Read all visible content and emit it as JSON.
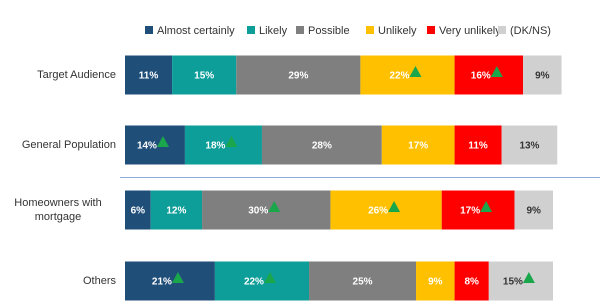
{
  "chart_data": {
    "type": "stacked-bar-horizontal",
    "categories": [
      "Target Audience",
      "General Population",
      "Homeowners with mortgage",
      "Others"
    ],
    "series": [
      {
        "name": "Almost certainly",
        "color": "#1f4e79",
        "label_color": "#ffffff",
        "values": [
          11,
          14,
          6,
          21
        ],
        "value_labels": [
          "11%",
          "14%",
          "6%",
          "21%"
        ],
        "up_markers": [
          false,
          true,
          false,
          true
        ]
      },
      {
        "name": "Likely",
        "color": "#0e9e9a",
        "label_color": "#ffffff",
        "values": [
          15,
          18,
          12,
          22
        ],
        "value_labels": [
          "15%",
          "18%",
          "12%",
          "22%"
        ],
        "up_markers": [
          false,
          true,
          false,
          true
        ]
      },
      {
        "name": "Possible",
        "color": "#7f7f7f",
        "label_color": "#ffffff",
        "values": [
          29,
          28,
          30,
          25
        ],
        "value_labels": [
          "29%",
          "28%",
          "30%",
          "25%"
        ],
        "up_markers": [
          false,
          false,
          true,
          false
        ]
      },
      {
        "name": "Unlikely",
        "color": "#ffc000",
        "label_color": "#ffffff",
        "values": [
          22,
          17,
          26,
          9
        ],
        "value_labels": [
          "22%",
          "17%",
          "26%",
          "9%"
        ],
        "up_markers": [
          true,
          false,
          true,
          false
        ]
      },
      {
        "name": "Very unlikely",
        "color": "#ff0000",
        "label_color": "#ffffff",
        "values": [
          16,
          11,
          17,
          8
        ],
        "value_labels": [
          "16%",
          "11%",
          "17%",
          "8%"
        ],
        "up_markers": [
          true,
          false,
          true,
          false
        ]
      },
      {
        "name": "(DK/NS)",
        "color": "#d0d0d0",
        "label_color": "#333333",
        "values": [
          9,
          13,
          9,
          15
        ],
        "value_labels": [
          "9%",
          "13%",
          "9%",
          "15%"
        ],
        "up_markers": [
          false,
          false,
          false,
          true
        ]
      }
    ],
    "marker_color": "#1aa64a",
    "separator_after": 1,
    "legend": "top"
  }
}
